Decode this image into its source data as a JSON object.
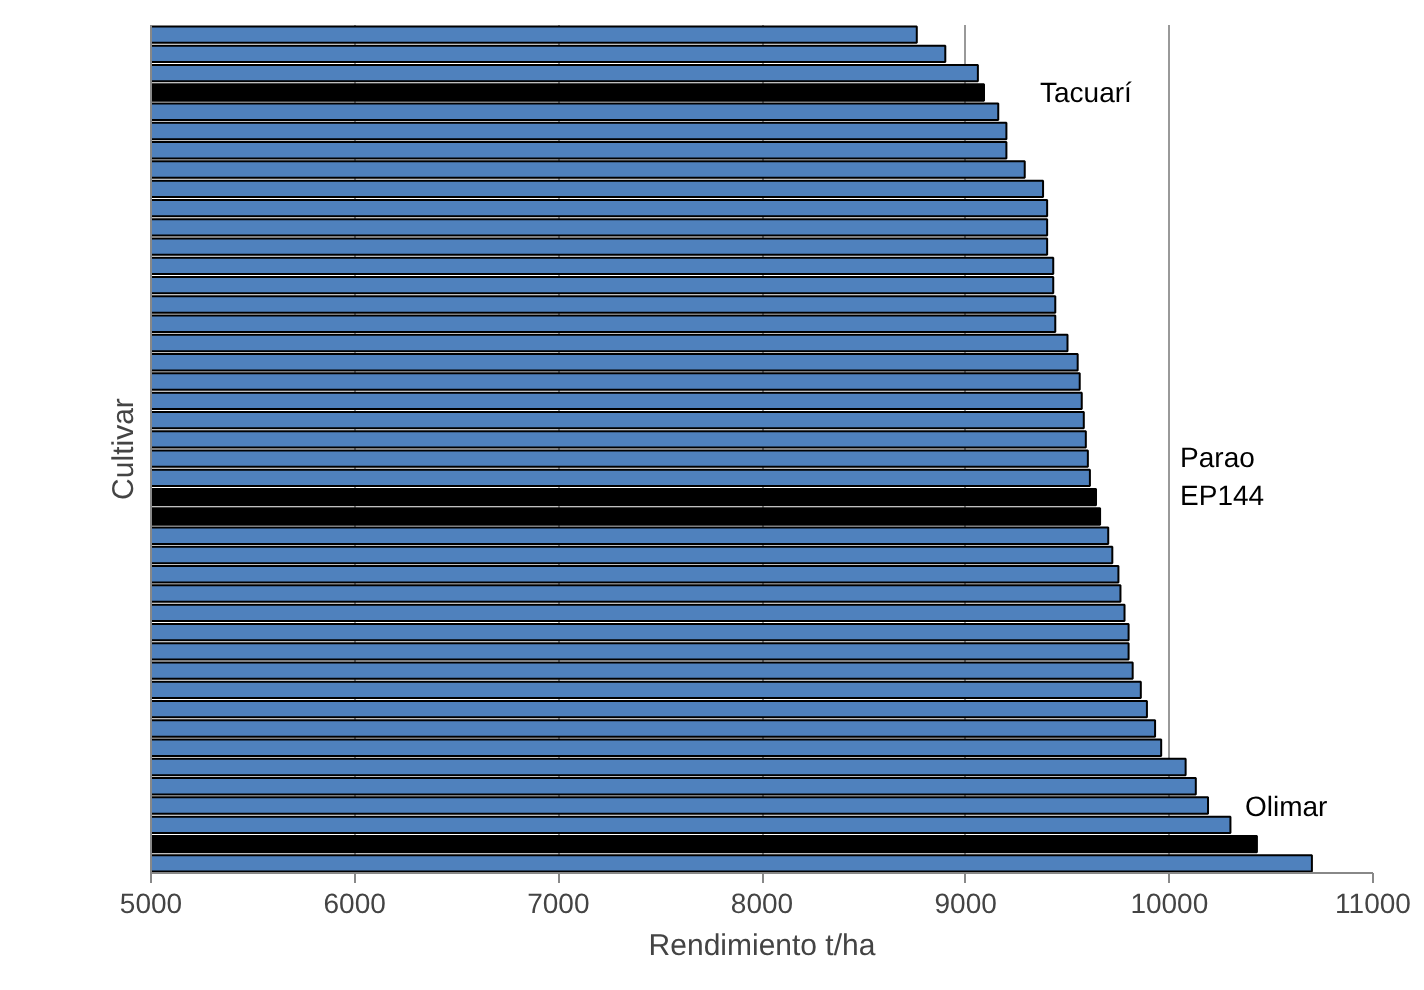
{
  "chart_data": {
    "type": "bar",
    "orientation": "horizontal",
    "xlabel": "Rendimiento t/ha",
    "ylabel": "Cultivar",
    "categories": [
      null,
      null,
      null,
      null,
      null,
      null,
      null,
      null,
      null,
      null,
      null,
      null,
      null,
      null,
      null,
      null,
      null,
      null,
      null,
      null,
      null,
      null,
      null,
      null,
      null,
      null,
      null,
      null,
      null,
      null,
      null,
      null,
      null,
      null,
      null,
      null,
      null,
      null,
      null,
      null,
      null,
      null,
      null,
      null
    ],
    "values": [
      8760,
      8900,
      9060,
      9090,
      9160,
      9200,
      9200,
      9290,
      9380,
      9400,
      9400,
      9400,
      9430,
      9430,
      9440,
      9440,
      9500,
      9550,
      9560,
      9570,
      9580,
      9590,
      9600,
      9610,
      9640,
      9660,
      9700,
      9720,
      9750,
      9760,
      9780,
      9800,
      9800,
      9820,
      9860,
      9890,
      9930,
      9960,
      10080,
      10130,
      10190,
      10300,
      10430,
      10700
    ],
    "colors": [
      "#4f81bd",
      "#4f81bd",
      "#4f81bd",
      "#000000",
      "#4f81bd",
      "#4f81bd",
      "#4f81bd",
      "#4f81bd",
      "#4f81bd",
      "#4f81bd",
      "#4f81bd",
      "#4f81bd",
      "#4f81bd",
      "#4f81bd",
      "#4f81bd",
      "#4f81bd",
      "#4f81bd",
      "#4f81bd",
      "#4f81bd",
      "#4f81bd",
      "#4f81bd",
      "#4f81bd",
      "#4f81bd",
      "#4f81bd",
      "#000000",
      "#000000",
      "#4f81bd",
      "#4f81bd",
      "#4f81bd",
      "#4f81bd",
      "#4f81bd",
      "#4f81bd",
      "#4f81bd",
      "#4f81bd",
      "#4f81bd",
      "#4f81bd",
      "#4f81bd",
      "#4f81bd",
      "#4f81bd",
      "#4f81bd",
      "#4f81bd",
      "#4f81bd",
      "#000000",
      "#4f81bd"
    ],
    "xlim": [
      5000,
      11000
    ],
    "xticks": [
      5000,
      6000,
      7000,
      8000,
      9000,
      10000,
      11000
    ],
    "grid": "x",
    "annotations": [
      "Tacuarí",
      "Parao\nEP144",
      "Olimar"
    ]
  }
}
